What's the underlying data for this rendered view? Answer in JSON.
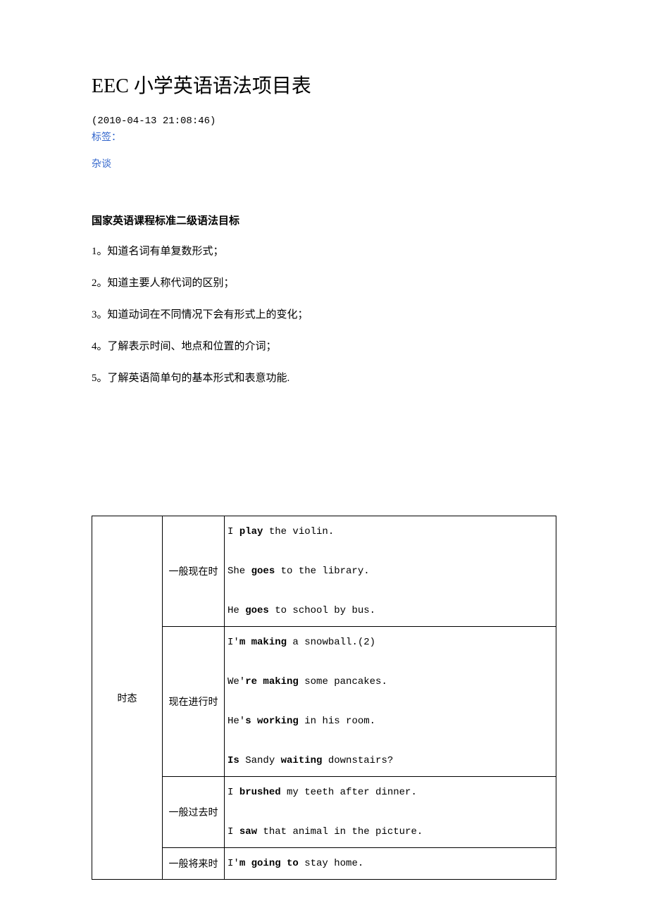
{
  "title": "EEC 小学英语语法项目表",
  "timestamp": "(2010-04-13 21:08:46)",
  "tags_label": "标签：",
  "tag_link": "杂谈",
  "section_header": "国家英语课程标准二级语法目标",
  "list_items": [
    "1。知道名词有单复数形式；",
    "2。知道主要人称代词的区别；",
    "3。知道动词在不同情况下会有形式上的变化；",
    "4。了解表示时间、地点和位置的介词；",
    "5。了解英语简单句的基本形式和表意功能."
  ],
  "table": {
    "category": "时态",
    "rows": [
      {
        "tense": "一般现在时",
        "examples": [
          {
            "parts": [
              {
                "t": "I ",
                "b": false
              },
              {
                "t": "play",
                "b": true
              },
              {
                "t": " the violin.",
                "b": false
              }
            ]
          },
          {
            "parts": [
              {
                "t": "She ",
                "b": false
              },
              {
                "t": "goes",
                "b": true
              },
              {
                "t": " to the library.",
                "b": false
              }
            ]
          },
          {
            "parts": [
              {
                "t": "He ",
                "b": false
              },
              {
                "t": "goes",
                "b": true
              },
              {
                "t": " to school by bus.",
                "b": false
              }
            ]
          }
        ]
      },
      {
        "tense": "现在进行时",
        "examples": [
          {
            "parts": [
              {
                "t": "I'",
                "b": false
              },
              {
                "t": "m making",
                "b": true
              },
              {
                "t": " a snowball.(2)",
                "b": false
              }
            ]
          },
          {
            "parts": [
              {
                "t": "We'",
                "b": false
              },
              {
                "t": "re making",
                "b": true
              },
              {
                "t": " some pancakes.",
                "b": false
              }
            ]
          },
          {
            "parts": [
              {
                "t": "He'",
                "b": false
              },
              {
                "t": "s working",
                "b": true
              },
              {
                "t": " in his room.",
                "b": false
              }
            ]
          },
          {
            "parts": [
              {
                "t": "Is",
                "b": true
              },
              {
                "t": " Sandy ",
                "b": false
              },
              {
                "t": "waiting",
                "b": true
              },
              {
                "t": " downstairs?",
                "b": false
              }
            ]
          }
        ]
      },
      {
        "tense": "一般过去时",
        "examples": [
          {
            "parts": [
              {
                "t": "I ",
                "b": false
              },
              {
                "t": "brushed",
                "b": true
              },
              {
                "t": " my teeth after dinner.",
                "b": false
              }
            ]
          },
          {
            "parts": [
              {
                "t": "I ",
                "b": false
              },
              {
                "t": "saw",
                "b": true
              },
              {
                "t": " that animal in the picture.",
                "b": false
              }
            ]
          }
        ]
      },
      {
        "tense": "一般将来时",
        "examples": [
          {
            "parts": [
              {
                "t": "I'",
                "b": false
              },
              {
                "t": "m going to",
                "b": true
              },
              {
                "t": " stay home.",
                "b": false
              }
            ]
          }
        ]
      }
    ]
  },
  "colors": {
    "link": "#3366cc",
    "text": "#000000",
    "background": "#ffffff",
    "border": "#000000"
  }
}
